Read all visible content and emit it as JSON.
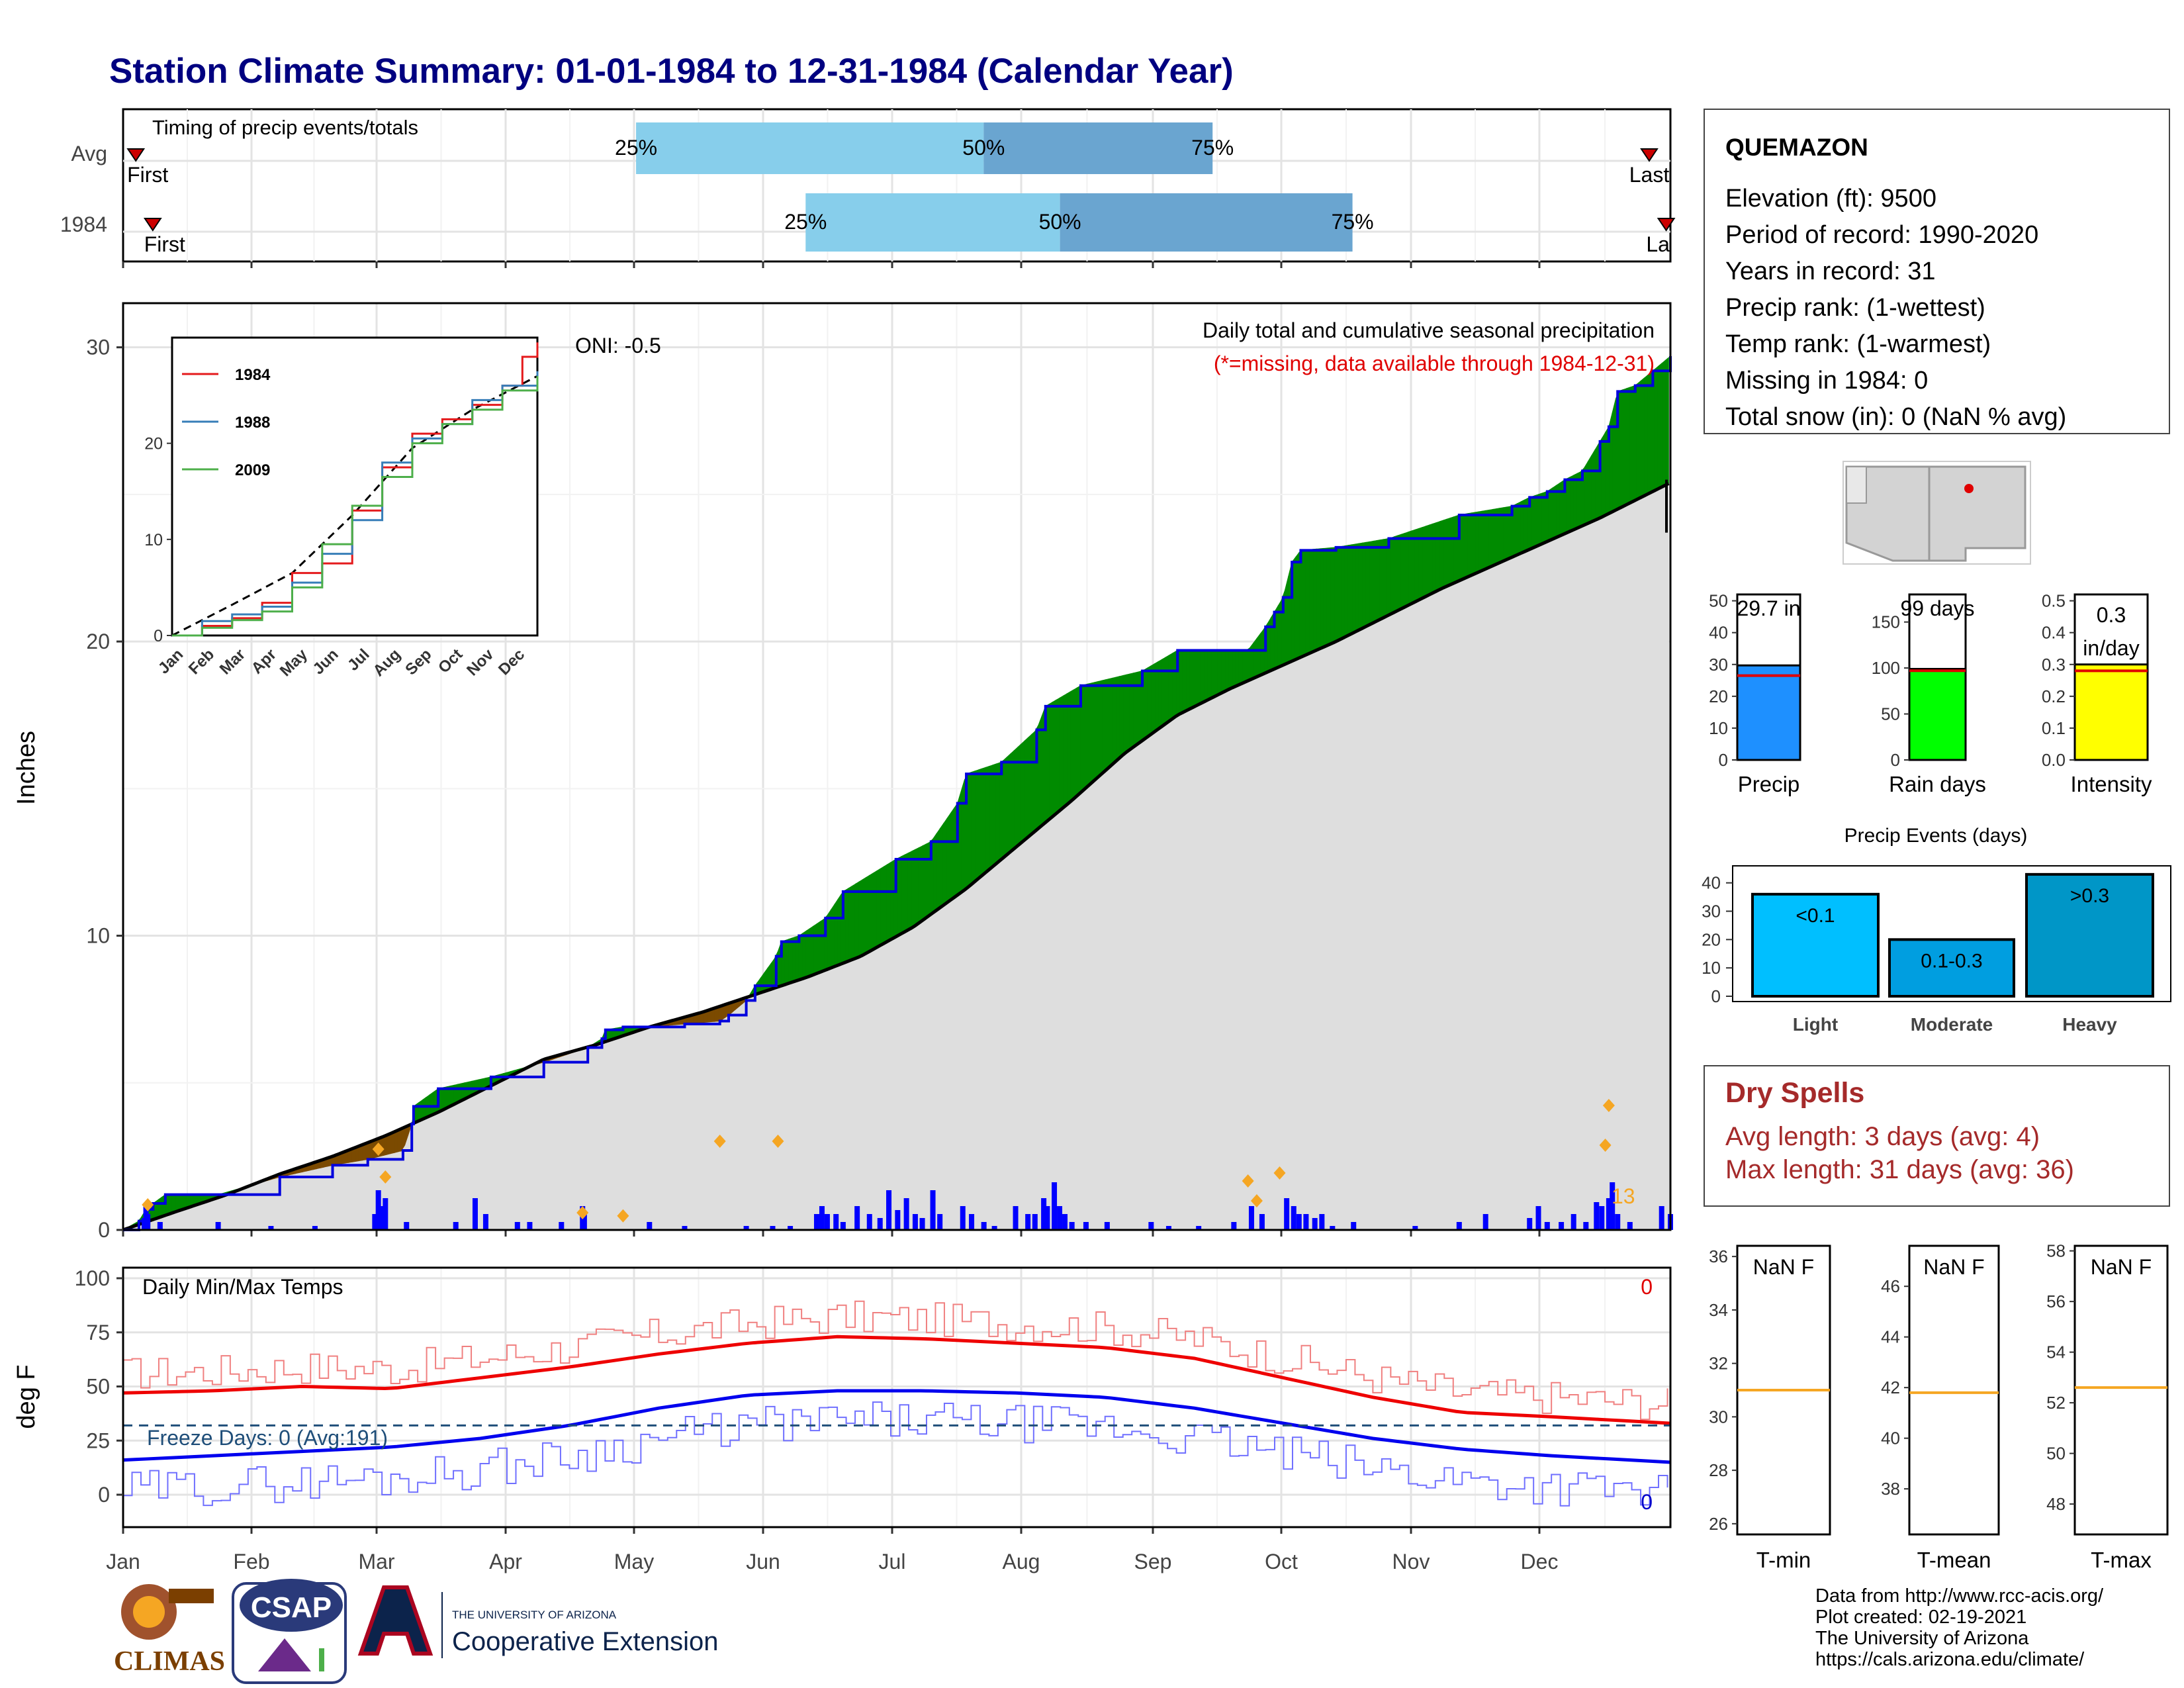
{
  "title": "Station Climate Summary: 01-01-1984 to 12-31-1984 (Calendar Year)",
  "months": [
    "Jan",
    "Feb",
    "Mar",
    "Apr",
    "May",
    "Jun",
    "Jul",
    "Aug",
    "Sep",
    "Oct",
    "Nov",
    "Dec"
  ],
  "timing": {
    "title": "Timing of precip events/totals",
    "rows": [
      {
        "label": "Avg",
        "first_label": "First",
        "last_label": "Last",
        "q25_label": "25%",
        "q50_label": "50%",
        "q75_label": "75%",
        "first_day": 4,
        "q25_day": 122,
        "q50_day": 204,
        "q75_day": 258,
        "last_day": 361
      },
      {
        "label": "1984",
        "first_label": "First",
        "last_label": "Last",
        "q25_label": "25%",
        "q50_label": "50%",
        "q75_label": "75%",
        "first_day": 8,
        "q25_day": 162,
        "q50_day": 222,
        "q75_day": 291,
        "last_day": 365
      }
    ]
  },
  "precip_panel": {
    "ylabel": "Inches",
    "oni_label": "ONI: -0.5",
    "subtitle": "Daily total and cumulative seasonal precipitation",
    "note": "(*=missing, data available through 1984-12-31)",
    "count_label": "13",
    "y_ticks": [
      "0",
      "10",
      "20",
      "30"
    ]
  },
  "inset": {
    "legend": [
      "1984",
      "1988",
      "2009"
    ],
    "y_ticks": [
      "0",
      "10",
      "20"
    ]
  },
  "temp_panel": {
    "ylabel": "deg F",
    "title": "Daily Min/Max Temps",
    "freeze_label": "Freeze Days: 0 (Avg:191)",
    "top_count": "0",
    "bottom_count": "0",
    "y_ticks": [
      "0",
      "25",
      "50",
      "75",
      "100"
    ]
  },
  "station": {
    "name": "QUEMAZON",
    "lines": [
      "Elevation (ft): 9500",
      "Period of record: 1990-2020",
      "Years in record: 31",
      "Precip rank:  (1-wettest)",
      "Temp rank:  (1-warmest)",
      "Missing in 1984: 0",
      "Total snow (in): 0 (NaN % avg)"
    ]
  },
  "summary_bars": [
    {
      "label": "Precip",
      "value_label": "29.7 in",
      "value": 29.7,
      "avg": 26.5,
      "ymax": 52,
      "ticks": [
        "0",
        "10",
        "20",
        "30",
        "40",
        "50"
      ],
      "color": "#1e90ff"
    },
    {
      "label": "Rain days",
      "value_label": "99 days",
      "value": 99,
      "avg": 97,
      "ymax": 180,
      "ticks": [
        "0",
        "50",
        "100",
        "150"
      ],
      "color": "#00ff00"
    },
    {
      "label": "Intensity",
      "value_label": "0.3 in/day",
      "value_line1": "0.3",
      "value_line2": "in/day",
      "value": 0.3,
      "avg": 0.28,
      "ymax": 0.52,
      "ticks": [
        "0.0",
        "0.1",
        "0.2",
        "0.3",
        "0.4",
        "0.5"
      ],
      "color": "#ffff00"
    }
  ],
  "events": {
    "title": "Precip Events (days)",
    "categories": [
      "Light",
      "Moderate",
      "Heavy"
    ],
    "bar_labels": [
      "<0.1",
      "0.1-0.3",
      ">0.3"
    ],
    "values": [
      36,
      20,
      43
    ],
    "colors": [
      "#00bfff",
      "#009ee0",
      "#0096c7"
    ],
    "ticks": [
      "0",
      "10",
      "20",
      "30",
      "40"
    ]
  },
  "dry_spells": {
    "title": "Dry Spells",
    "avg_line": "Avg length: 3 days (avg: 4)",
    "max_line": "Max length: 31 days (avg: 36)"
  },
  "temp_bars": [
    {
      "label": "T-min",
      "value_label": "NaN F",
      "avg": 31.0,
      "ymin": 25.6,
      "ymax": 36.4,
      "ticks": [
        "26",
        "28",
        "30",
        "32",
        "34",
        "36"
      ]
    },
    {
      "label": "T-mean",
      "value_label": "NaN F",
      "avg": 41.8,
      "ymin": 36.2,
      "ymax": 47.6,
      "ticks": [
        "38",
        "40",
        "42",
        "44",
        "46"
      ]
    },
    {
      "label": "T-max",
      "value_label": "NaN F",
      "avg": 52.6,
      "ymin": 46.8,
      "ymax": 58.2,
      "ticks": [
        "48",
        "50",
        "52",
        "54",
        "56",
        "58"
      ]
    }
  ],
  "footer": {
    "lines": [
      "Data from http://www.rcc-acis.org/",
      "Plot created: 02-19-2021",
      "The University of Arizona",
      "https://cals.arizona.edu/climate/"
    ],
    "logo1": "CLIMAS",
    "logo2": "CSAP",
    "logo3_small": "THE UNIVERSITY OF ARIZONA",
    "logo3_big": "Cooperative Extension"
  },
  "chart_data": {
    "type": "area",
    "x_unit": "day of year (1984)",
    "y_unit": "inches",
    "ylim": [
      0,
      31.5
    ],
    "cum_1984": [
      [
        1,
        0
      ],
      [
        10,
        0.3
      ],
      [
        14,
        0.7
      ],
      [
        18,
        0.9
      ],
      [
        25,
        1.2
      ],
      [
        55,
        1.2
      ],
      [
        90,
        1.8
      ],
      [
        120,
        2.2
      ],
      [
        140,
        2.4
      ],
      [
        160,
        2.7
      ],
      [
        165,
        3.6
      ],
      [
        166,
        4.2
      ],
      [
        180,
        4.8
      ],
      [
        210,
        5.2
      ],
      [
        240,
        5.7
      ],
      [
        265,
        6.2
      ],
      [
        273,
        6.5
      ],
      [
        275,
        6.8
      ],
      [
        285,
        6.9
      ],
      [
        300,
        6.9
      ],
      [
        320,
        7.0
      ],
      [
        340,
        7.1
      ],
      [
        345,
        7.3
      ],
      [
        355,
        7.8
      ],
      [
        360,
        8.3
      ],
      [
        372,
        9.3
      ],
      [
        375,
        9.8
      ],
      [
        385,
        10.0
      ],
      [
        400,
        10.6
      ],
      [
        410,
        11.5
      ],
      [
        440,
        12.6
      ],
      [
        460,
        13.2
      ],
      [
        475,
        14.5
      ],
      [
        480,
        15.5
      ],
      [
        500,
        15.9
      ],
      [
        520,
        17.0
      ],
      [
        525,
        17.8
      ],
      [
        545,
        18.5
      ],
      [
        580,
        19.0
      ],
      [
        600,
        19.7
      ],
      [
        640,
        19.7
      ],
      [
        650,
        20.5
      ],
      [
        655,
        21.0
      ],
      [
        660,
        21.5
      ],
      [
        665,
        22.7
      ],
      [
        670,
        23.1
      ],
      [
        690,
        23.2
      ],
      [
        720,
        23.5
      ],
      [
        760,
        24.3
      ],
      [
        790,
        24.6
      ],
      [
        800,
        24.9
      ],
      [
        810,
        25.1
      ],
      [
        820,
        25.5
      ],
      [
        830,
        25.8
      ],
      [
        840,
        26.8
      ],
      [
        845,
        27.3
      ],
      [
        850,
        28.5
      ],
      [
        860,
        28.7
      ],
      [
        870,
        29.2
      ],
      [
        880,
        29.7
      ]
    ],
    "cum_avg": [
      [
        1,
        0
      ],
      [
        30,
        0.6
      ],
      [
        60,
        1.2
      ],
      [
        90,
        1.9
      ],
      [
        120,
        2.5
      ],
      [
        150,
        3.2
      ],
      [
        180,
        4.0
      ],
      [
        210,
        4.9
      ],
      [
        240,
        5.8
      ],
      [
        270,
        6.3
      ],
      [
        300,
        6.9
      ],
      [
        330,
        7.4
      ],
      [
        360,
        8.0
      ],
      [
        390,
        8.6
      ],
      [
        420,
        9.3
      ],
      [
        450,
        10.3
      ],
      [
        480,
        11.6
      ],
      [
        510,
        13.1
      ],
      [
        540,
        14.6
      ],
      [
        570,
        16.2
      ],
      [
        600,
        17.5
      ],
      [
        630,
        18.4
      ],
      [
        660,
        19.2
      ],
      [
        690,
        20.0
      ],
      [
        720,
        20.9
      ],
      [
        750,
        21.8
      ],
      [
        780,
        22.6
      ],
      [
        810,
        23.4
      ],
      [
        840,
        24.2
      ],
      [
        860,
        24.8
      ],
      [
        880,
        25.4
      ]
    ],
    "inset_series": [
      {
        "name": "1984",
        "color": "#e41a1c",
        "points": [
          [
            0,
            0
          ],
          [
            30,
            1
          ],
          [
            60,
            1.8
          ],
          [
            90,
            3.4
          ],
          [
            120,
            6.5
          ],
          [
            150,
            7.5
          ],
          [
            180,
            13
          ],
          [
            210,
            17.5
          ],
          [
            240,
            21
          ],
          [
            270,
            22.5
          ],
          [
            300,
            24
          ],
          [
            330,
            26
          ],
          [
            350,
            29
          ],
          [
            365,
            30.5
          ]
        ]
      },
      {
        "name": "1988",
        "color": "#377eb8",
        "points": [
          [
            0,
            0
          ],
          [
            30,
            1.5
          ],
          [
            60,
            2.2
          ],
          [
            90,
            3.0
          ],
          [
            120,
            5.5
          ],
          [
            150,
            8.5
          ],
          [
            180,
            12
          ],
          [
            210,
            18
          ],
          [
            240,
            20.5
          ],
          [
            270,
            22
          ],
          [
            300,
            24.5
          ],
          [
            330,
            26
          ],
          [
            365,
            27.5
          ]
        ]
      },
      {
        "name": "2009",
        "color": "#4daf4a",
        "points": [
          [
            0,
            0
          ],
          [
            30,
            0.8
          ],
          [
            60,
            1.6
          ],
          [
            90,
            2.5
          ],
          [
            120,
            5
          ],
          [
            150,
            9.5
          ],
          [
            180,
            13.5
          ],
          [
            210,
            16.5
          ],
          [
            240,
            20
          ],
          [
            270,
            22
          ],
          [
            300,
            23.5
          ],
          [
            330,
            25.5
          ],
          [
            365,
            27
          ]
        ]
      }
    ],
    "inset_avg_points": [
      [
        0,
        0
      ],
      [
        60,
        3.2
      ],
      [
        120,
        6.5
      ],
      [
        180,
        12.5
      ],
      [
        240,
        19.5
      ],
      [
        300,
        23.5
      ],
      [
        365,
        27
      ]
    ],
    "daily_events": [
      [
        13,
        0.15
      ],
      [
        14,
        0.3
      ],
      [
        15,
        0.2
      ],
      [
        22,
        0.1
      ],
      [
        55,
        0.1
      ],
      [
        85,
        0.05
      ],
      [
        110,
        0.05
      ],
      [
        144,
        0.2
      ],
      [
        146,
        0.5
      ],
      [
        148,
        0.3
      ],
      [
        150,
        0.4
      ],
      [
        162,
        0.1
      ],
      [
        190,
        0.1
      ],
      [
        201,
        0.4
      ],
      [
        207,
        0.2
      ],
      [
        225,
        0.1
      ],
      [
        232,
        0.1
      ],
      [
        250,
        0.1
      ],
      [
        262,
        0.3
      ],
      [
        263,
        0.2
      ],
      [
        300,
        0.1
      ],
      [
        320,
        0.05
      ],
      [
        355,
        0.05
      ],
      [
        370,
        0.05
      ],
      [
        380,
        0.05
      ],
      [
        395,
        0.2
      ],
      [
        398,
        0.3
      ],
      [
        401,
        0.2
      ],
      [
        406,
        0.2
      ],
      [
        410,
        0.1
      ],
      [
        418,
        0.3
      ],
      [
        425,
        0.2
      ],
      [
        431,
        0.15
      ],
      [
        436,
        0.5
      ],
      [
        441,
        0.25
      ],
      [
        446,
        0.4
      ],
      [
        451,
        0.2
      ],
      [
        455,
        0.15
      ],
      [
        461,
        0.5
      ],
      [
        465,
        0.2
      ],
      [
        478,
        0.3
      ],
      [
        483,
        0.2
      ],
      [
        490,
        0.1
      ],
      [
        496,
        0.05
      ],
      [
        508,
        0.3
      ],
      [
        515,
        0.2
      ],
      [
        519,
        0.2
      ],
      [
        524,
        0.4
      ],
      [
        526,
        0.3
      ],
      [
        530,
        0.6
      ],
      [
        533,
        0.3
      ],
      [
        536,
        0.2
      ],
      [
        540,
        0.1
      ],
      [
        548,
        0.1
      ],
      [
        560,
        0.1
      ],
      [
        585,
        0.1
      ],
      [
        595,
        0.05
      ],
      [
        612,
        0.05
      ],
      [
        632,
        0.1
      ],
      [
        642,
        0.3
      ],
      [
        648,
        0.2
      ],
      [
        662,
        0.4
      ],
      [
        666,
        0.3
      ],
      [
        669,
        0.2
      ],
      [
        673,
        0.2
      ],
      [
        678,
        0.15
      ],
      [
        682,
        0.2
      ],
      [
        688,
        0.05
      ],
      [
        700,
        0.1
      ],
      [
        735,
        0.05
      ],
      [
        760,
        0.1
      ],
      [
        775,
        0.2
      ],
      [
        800,
        0.15
      ],
      [
        805,
        0.3
      ],
      [
        810,
        0.1
      ],
      [
        818,
        0.1
      ],
      [
        825,
        0.2
      ],
      [
        832,
        0.1
      ],
      [
        838,
        0.35
      ],
      [
        841,
        0.3
      ],
      [
        845,
        0.4
      ],
      [
        847,
        0.6
      ],
      [
        850,
        0.2
      ],
      [
        857,
        0.1
      ],
      [
        875,
        0.3
      ],
      [
        880,
        0.2
      ]
    ],
    "missing_markers": [
      [
        15,
        0.2
      ],
      [
        146,
        0.9
      ],
      [
        150,
        0.55
      ],
      [
        262,
        0.1
      ],
      [
        285,
        0.06
      ],
      [
        340,
        1.0
      ],
      [
        373,
        1.0
      ],
      [
        640,
        0.5
      ],
      [
        645,
        0.25
      ],
      [
        658,
        0.6
      ],
      [
        843,
        0.95
      ],
      [
        845,
        1.45
      ]
    ],
    "temp_series": {
      "tmax_smooth": [
        [
          0,
          47
        ],
        [
          30,
          48
        ],
        [
          60,
          50
        ],
        [
          90,
          49
        ],
        [
          120,
          54
        ],
        [
          150,
          59
        ],
        [
          180,
          65
        ],
        [
          210,
          70
        ],
        [
          240,
          73
        ],
        [
          270,
          72
        ],
        [
          300,
          70
        ],
        [
          330,
          68
        ],
        [
          360,
          63
        ],
        [
          390,
          54
        ],
        [
          420,
          45
        ],
        [
          450,
          38
        ],
        [
          480,
          36
        ],
        [
          520,
          33
        ]
      ],
      "tmin_smooth": [
        [
          0,
          16
        ],
        [
          30,
          18
        ],
        [
          60,
          20
        ],
        [
          90,
          22
        ],
        [
          120,
          26
        ],
        [
          150,
          32
        ],
        [
          180,
          40
        ],
        [
          210,
          46
        ],
        [
          240,
          48
        ],
        [
          270,
          48
        ],
        [
          300,
          47
        ],
        [
          330,
          45
        ],
        [
          360,
          40
        ],
        [
          390,
          33
        ],
        [
          420,
          26
        ],
        [
          450,
          21
        ],
        [
          480,
          18
        ],
        [
          520,
          15
        ]
      ],
      "freeze_line": 32
    }
  }
}
